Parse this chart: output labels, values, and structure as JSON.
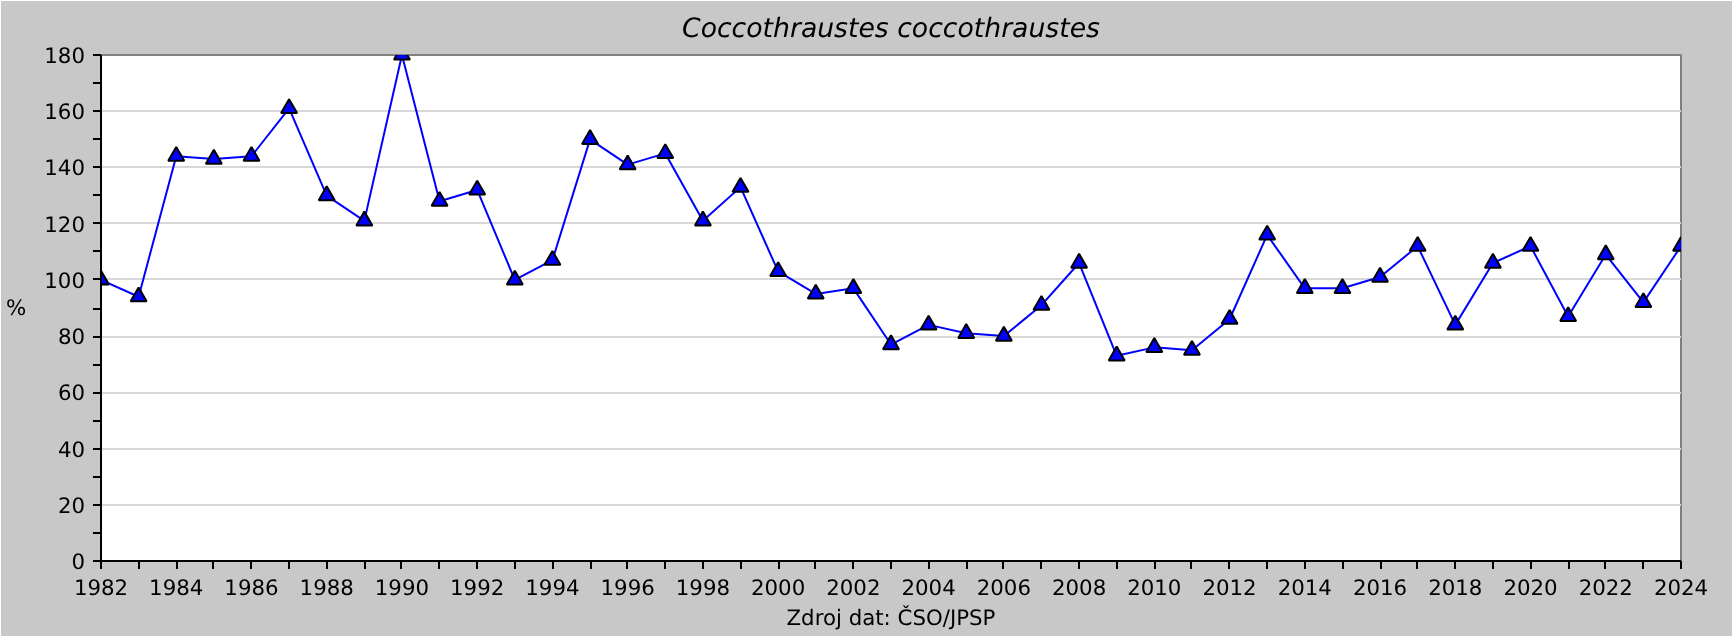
{
  "chart_data": {
    "type": "line",
    "title": "Coccothraustes coccothraustes",
    "xlabel": "Zdroj dat: ČSO/JPSP",
    "ylabel": "%",
    "x": [
      1982,
      1983,
      1984,
      1985,
      1986,
      1987,
      1988,
      1989,
      1990,
      1991,
      1992,
      1993,
      1994,
      1995,
      1996,
      1997,
      1998,
      1999,
      2000,
      2001,
      2002,
      2003,
      2004,
      2005,
      2006,
      2007,
      2008,
      2009,
      2010,
      2011,
      2012,
      2013,
      2014,
      2015,
      2016,
      2017,
      2018,
      2019,
      2020,
      2021,
      2022,
      2023,
      2024
    ],
    "series": [
      {
        "color": "#0000ff",
        "values": [
          100,
          94,
          144,
          143,
          144,
          161,
          130,
          121,
          180,
          128,
          132,
          100,
          107,
          150,
          141,
          145,
          121,
          133,
          103,
          95,
          97,
          77,
          84,
          81,
          80,
          91,
          106,
          73,
          76,
          75,
          86,
          116,
          97,
          97,
          101,
          112,
          84,
          106,
          112,
          87,
          109,
          92,
          112
        ]
      }
    ],
    "xlim": [
      1982,
      2024
    ],
    "xticks": [
      1982,
      {
        "value": 1983,
        "label": null
      },
      1984,
      {
        "value": 1985,
        "label": null
      },
      1986,
      {
        "value": 1987,
        "label": null
      },
      1988,
      {
        "value": 1989,
        "label": null
      },
      1990,
      {
        "value": 1991,
        "label": null
      },
      1992,
      {
        "value": 1993,
        "label": null
      },
      1994,
      {
        "value": 1995,
        "label": null
      },
      1996,
      {
        "value": 1997,
        "label": null
      },
      1998,
      {
        "value": 1999,
        "label": null
      },
      2000,
      {
        "value": 2001,
        "label": null
      },
      2002,
      {
        "value": 2003,
        "label": null
      },
      2004,
      {
        "value": 2005,
        "label": null
      },
      2006,
      {
        "value": 2007,
        "label": null
      },
      2008,
      {
        "value": 2009,
        "label": null
      },
      2010,
      {
        "value": 2011,
        "label": null
      },
      2012,
      {
        "value": 2013,
        "label": null
      },
      2014,
      {
        "value": 2015,
        "label": null
      },
      2016,
      {
        "value": 2017,
        "label": null
      },
      2018,
      {
        "value": 2019,
        "label": null
      },
      2020,
      {
        "value": 2021,
        "label": null
      },
      2022,
      {
        "value": 2023,
        "label": null
      },
      2024
    ],
    "ylim": [
      0,
      180
    ],
    "yticks": [
      0,
      {
        "value": 10,
        "label": null
      },
      20,
      {
        "value": 30,
        "label": null
      },
      40,
      {
        "value": 50,
        "label": null
      },
      60,
      {
        "value": 70,
        "label": null
      },
      80,
      {
        "value": 90,
        "label": null
      },
      100,
      {
        "value": 110,
        "label": null
      },
      120,
      {
        "value": 130,
        "label": null
      },
      140,
      {
        "value": 150,
        "label": null
      },
      160,
      {
        "value": 170,
        "label": null
      },
      180
    ],
    "grid": "y",
    "marker": "triangle",
    "line_style": "solid"
  }
}
